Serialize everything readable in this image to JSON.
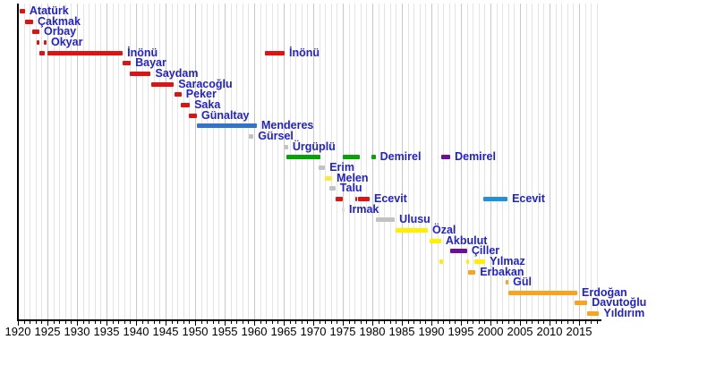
{
  "page": {
    "background": "#FFFFFF"
  },
  "palette": {
    "chp_red": "#DC1414",
    "dp_blue": "#3474C8",
    "ap_green": "#0AA00A",
    "dyp_purple": "#6E0C9C",
    "anap_yellow": "#FFF000",
    "melen_yellow": "#FFE640",
    "rp_akp_orange": "#F9A420",
    "dsp_blue": "#2191D9",
    "gray": "#C2C2C2",
    "light_gray": "#DCDCDC",
    "label_blue": "#2222CC",
    "axis_black": "#000000",
    "grid_minor": "#E4E4E4",
    "grid_major": "#C8C8C8"
  },
  "chart_data": {
    "type": "timeline",
    "title": "",
    "x_axis": {
      "start": 1920,
      "end": 2018.5,
      "minor_tick_interval": 1,
      "major_tick_interval": 5,
      "tick_labels": [
        "1920",
        "1925",
        "1930",
        "1935",
        "1940",
        "1945",
        "1950",
        "1955",
        "1960",
        "1965",
        "1970",
        "1975",
        "1980",
        "1985",
        "1990",
        "1995",
        "2000",
        "2005",
        "2010",
        "2015"
      ]
    },
    "rows": [
      {
        "name": "Atatürk",
        "segments": [
          [
            1920.3,
            1921.2,
            "chp_red"
          ]
        ]
      },
      {
        "name": "Çakmak",
        "segments": [
          [
            1921.2,
            1922.58,
            "chp_red"
          ]
        ]
      },
      {
        "name": "Orbay",
        "segments": [
          [
            1922.45,
            1923.64,
            "chp_red"
          ]
        ]
      },
      {
        "name": "Okyar",
        "segments": [
          [
            1923.2,
            1923.68,
            "chp_red"
          ],
          [
            1924.4,
            1924.85,
            "chp_red"
          ]
        ]
      },
      {
        "name": "İnönü",
        "segments": [
          [
            1923.65,
            1924.55,
            "chp_red"
          ],
          [
            1925.0,
            1937.75,
            "chp_red"
          ],
          [
            1961.85,
            1965.15,
            "chp_red"
          ]
        ],
        "label_segs": [
          1,
          2
        ]
      },
      {
        "name": "Bayar",
        "segments": [
          [
            1937.75,
            1939.1,
            "chp_red"
          ]
        ]
      },
      {
        "name": "Saydam",
        "segments": [
          [
            1938.95,
            1942.5,
            "chp_red"
          ]
        ]
      },
      {
        "name": "Saracoğlu",
        "segments": [
          [
            1942.5,
            1946.4,
            "chp_red"
          ]
        ]
      },
      {
        "name": "Peker",
        "segments": [
          [
            1946.55,
            1947.7,
            "chp_red"
          ]
        ]
      },
      {
        "name": "Saka",
        "segments": [
          [
            1947.6,
            1949.1,
            "chp_red"
          ]
        ]
      },
      {
        "name": "Günaltay",
        "segments": [
          [
            1948.95,
            1950.3,
            "chp_red"
          ]
        ]
      },
      {
        "name": "Menderes",
        "segments": [
          [
            1950.3,
            1960.45,
            "dp_blue"
          ]
        ]
      },
      {
        "name": "Gürsel",
        "segments": [
          [
            1959.1,
            1959.9,
            "gray"
          ]
        ]
      },
      {
        "name": "Ürgüplü",
        "segments": [
          [
            1965.15,
            1965.75,
            "gray"
          ]
        ]
      },
      {
        "name": "Demirel",
        "segments": [
          [
            1965.5,
            1971.2,
            "ap_green"
          ],
          [
            1975.0,
            1977.9,
            "ap_green"
          ],
          [
            1979.8,
            1980.55,
            "ap_green"
          ],
          [
            1991.7,
            1993.2,
            "dyp_purple"
          ]
        ],
        "label_segs": [
          2,
          3
        ]
      },
      {
        "name": "Erim",
        "segments": [
          [
            1970.9,
            1972.0,
            "gray"
          ]
        ]
      },
      {
        "name": "Melen",
        "segments": [
          [
            1972.0,
            1973.2,
            "melen_yellow"
          ]
        ]
      },
      {
        "name": "Talu",
        "segments": [
          [
            1972.75,
            1973.75,
            "gray"
          ]
        ]
      },
      {
        "name": "Ecevit",
        "segments": [
          [
            1973.8,
            1975.0,
            "chp_red"
          ],
          [
            1977.05,
            1977.3,
            "chp_red"
          ],
          [
            1977.6,
            1979.55,
            "chp_red"
          ],
          [
            1998.8,
            2002.9,
            "dsp_blue"
          ]
        ],
        "label_segs": [
          2,
          3
        ]
      },
      {
        "name": "Irmak",
        "segments": [
          [
            1974.9,
            1975.3,
            "light_gray"
          ]
        ]
      },
      {
        "name": "Ulusu",
        "segments": [
          [
            1980.6,
            1983.8,
            "gray"
          ]
        ]
      },
      {
        "name": "Özal",
        "segments": [
          [
            1983.95,
            1989.4,
            "anap_yellow"
          ]
        ]
      },
      {
        "name": "Akbulut",
        "segments": [
          [
            1989.7,
            1991.65,
            "anap_yellow"
          ]
        ]
      },
      {
        "name": "Çiller",
        "segments": [
          [
            1993.2,
            1996.05,
            "dyp_purple"
          ]
        ]
      },
      {
        "name": "Yılmaz",
        "segments": [
          [
            1991.4,
            1991.95,
            "anap_yellow"
          ],
          [
            1995.9,
            1996.35,
            "anap_yellow"
          ],
          [
            1997.3,
            1999.1,
            "anap_yellow"
          ]
        ]
      },
      {
        "name": "Erbakan",
        "segments": [
          [
            1996.2,
            1997.45,
            "rp_akp_orange"
          ]
        ]
      },
      {
        "name": "Gül",
        "segments": [
          [
            2002.6,
            2003.05,
            "rp_akp_orange"
          ]
        ]
      },
      {
        "name": "Erdoğan",
        "segments": [
          [
            2003.05,
            2014.7,
            "rp_akp_orange"
          ]
        ]
      },
      {
        "name": "Davutoğlu",
        "segments": [
          [
            2014.3,
            2016.4,
            "rp_akp_orange"
          ]
        ]
      },
      {
        "name": "Yıldırım",
        "segments": [
          [
            2016.4,
            2018.4,
            "rp_akp_orange"
          ]
        ]
      }
    ]
  }
}
